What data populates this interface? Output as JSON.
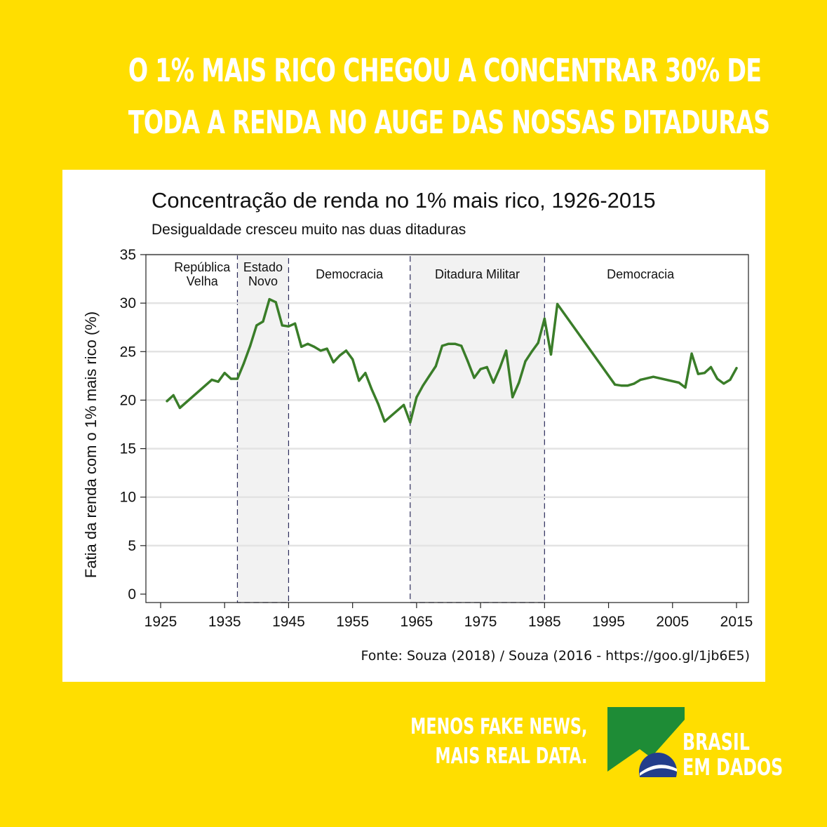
{
  "headline": {
    "line1": "O 1% MAIS RICO CHEGOU A CONCENTRAR 30% DE",
    "line2": "TODA A RENDA NO AUGE DAS NOSSAS DITADURAS"
  },
  "chart_data": {
    "type": "line",
    "title": "Concentração de renda no 1% mais rico, 1926-2015",
    "subtitle": "Desigualdade cresceu muito nas duas ditaduras",
    "ylabel": "Fatia da renda com o 1% mais rico (%)",
    "xlabel": "",
    "xlim": [
      1925,
      2016
    ],
    "ylim": [
      0,
      35
    ],
    "x_ticks": [
      "1925",
      "1935",
      "1945",
      "1955",
      "1965",
      "1975",
      "1985",
      "1995",
      "2005",
      "2015"
    ],
    "y_ticks": [
      "0",
      "5",
      "10",
      "15",
      "20",
      "25",
      "30",
      "35"
    ],
    "grid": true,
    "line_color": "#3A7D29",
    "periods": [
      {
        "label": "República\nVelha",
        "start": 1926,
        "end": 1937,
        "shaded": false
      },
      {
        "label": "Estado\nNovo",
        "start": 1937,
        "end": 1945,
        "shaded": true
      },
      {
        "label": "Democracia",
        "start": 1945,
        "end": 1964,
        "shaded": false
      },
      {
        "label": "Ditadura Militar",
        "start": 1964,
        "end": 1985,
        "shaded": true
      },
      {
        "label": "Democracia",
        "start": 1985,
        "end": 2015,
        "shaded": false
      }
    ],
    "x": [
      1926,
      1927,
      1928,
      1933,
      1934,
      1935,
      1936,
      1937,
      1938,
      1939,
      1940,
      1941,
      1942,
      1943,
      1944,
      1945,
      1946,
      1947,
      1948,
      1949,
      1950,
      1951,
      1952,
      1953,
      1954,
      1955,
      1956,
      1957,
      1958,
      1959,
      1960,
      1963,
      1964,
      1965,
      1966,
      1967,
      1968,
      1969,
      1970,
      1971,
      1972,
      1973,
      1974,
      1975,
      1976,
      1977,
      1978,
      1979,
      1980,
      1981,
      1982,
      1983,
      1984,
      1985,
      1986,
      1987,
      1996,
      1997,
      1998,
      1999,
      2000,
      2002,
      2006,
      2007,
      2008,
      2009,
      2010,
      2011,
      2012,
      2013,
      2014,
      2015
    ],
    "y": [
      19.9,
      20.5,
      19.2,
      22.1,
      21.9,
      22.8,
      22.2,
      22.2,
      23.8,
      25.6,
      27.7,
      28.1,
      30.4,
      30.1,
      27.7,
      27.6,
      27.9,
      25.5,
      25.8,
      25.5,
      25.1,
      25.3,
      23.9,
      24.6,
      25.1,
      24.2,
      22.0,
      22.8,
      21.1,
      19.6,
      17.8,
      19.5,
      17.7,
      20.3,
      21.5,
      22.5,
      23.5,
      25.6,
      25.8,
      25.8,
      25.6,
      24.0,
      22.3,
      23.2,
      23.4,
      21.8,
      23.3,
      25.1,
      20.3,
      21.8,
      24.0,
      25.0,
      25.9,
      28.4,
      24.7,
      29.9,
      21.6,
      21.5,
      21.5,
      21.7,
      22.1,
      22.4,
      21.8,
      21.3,
      24.8,
      22.7,
      22.8,
      23.4,
      22.2,
      21.7,
      22.1,
      23.3
    ]
  },
  "source": "Fonte: Souza (2018) / Souza (2016 - https://goo.gl/1jb6E5)",
  "slogan": {
    "line1": "MENOS FAKE NEWS,",
    "line2": "MAIS REAL DATA."
  },
  "brand": {
    "line1": "BRASIL",
    "line2": "EM DADOS",
    "colors": {
      "green": "#1E8C36",
      "yellow": "#FFDE00",
      "blue": "#233E8B"
    }
  }
}
